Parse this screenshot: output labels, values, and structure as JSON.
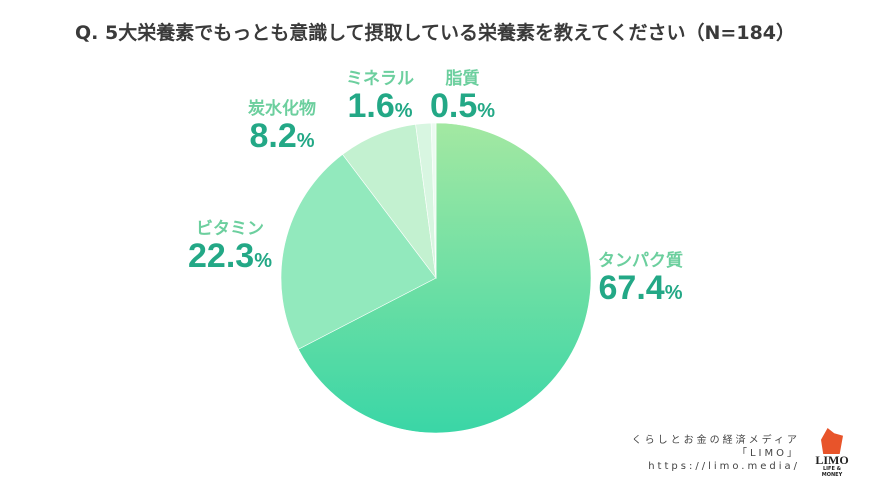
{
  "title": "Q. 5大栄養素でもっとも意識して摂取している栄養素を教えてください（N=184）",
  "chart_data": {
    "type": "pie",
    "title": "Q. 5大栄養素でもっとも意識して摂取している栄養素を教えてください（N=184）",
    "n": 184,
    "slices": [
      {
        "label": "タンパク質",
        "value": 67.4,
        "color": "#6fe0a4"
      },
      {
        "label": "ビタミン",
        "value": 22.3,
        "color": "#92e9bd"
      },
      {
        "label": "炭水化物",
        "value": 8.2,
        "color": "#c3f1d0"
      },
      {
        "label": "ミネラル",
        "value": 1.6,
        "color": "#d8f6e1"
      },
      {
        "label": "脂質",
        "value": 0.5,
        "color": "#ebfbf0"
      }
    ],
    "unit": "%"
  },
  "credit": {
    "line1": "くらしとお金の経済メディア",
    "line2": "「LIMO」",
    "line3": "https://limo.media/"
  },
  "logo": {
    "name": "LIMO",
    "sub": "LIFE & MONEY"
  }
}
